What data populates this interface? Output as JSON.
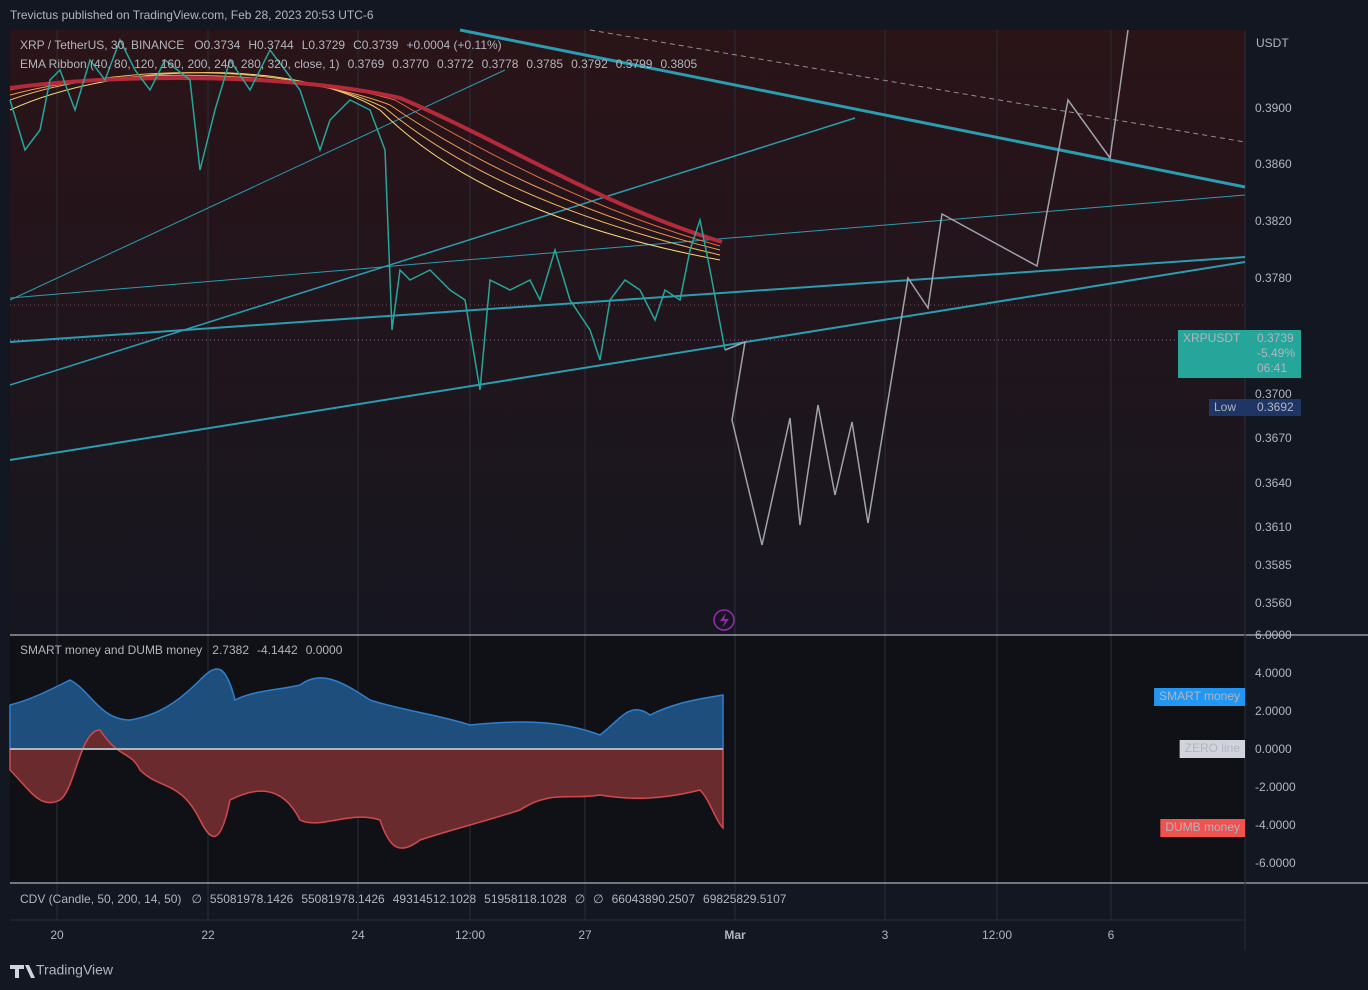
{
  "header": {
    "published": "Trevictus published on TradingView.com, Feb 28, 2023 20:53 UTC-6"
  },
  "legend": {
    "symbol": "XRP / TetherUS, 30, BINANCE",
    "ohlc": [
      "O0.3734",
      "H0.3744",
      "L0.3729",
      "C0.3739",
      "+0.0004 (+0.11%)"
    ],
    "ema_title": "EMA Ribbon (40, 80, 120, 160, 200, 240, 280, 320, close, 1)",
    "ema_values": [
      {
        "text": "0.3769",
        "color": "#f5d97a"
      },
      {
        "text": "0.3770",
        "color": "#f3c86a"
      },
      {
        "text": "0.3772",
        "color": "#f0b35c"
      },
      {
        "text": "0.3778",
        "color": "#ec9b52"
      },
      {
        "text": "0.3785",
        "color": "#e88049"
      },
      {
        "text": "0.3792",
        "color": "#e26841"
      },
      {
        "text": "0.3799",
        "color": "#dc503c"
      },
      {
        "text": "0.3805",
        "color": "#d23a3a"
      }
    ]
  },
  "price_axis": {
    "unit": "USDT",
    "ticks": [
      "0.3900",
      "0.3860",
      "0.3820",
      "0.3780",
      "0.3700",
      "0.3670",
      "0.3640",
      "0.3610",
      "0.3585",
      "0.3560"
    ],
    "badge": {
      "symbol": "XRPUSDT",
      "price": "0.3739",
      "change": "-5.49%",
      "countdown": "06:41"
    },
    "low": {
      "label": "Low",
      "price": "0.3692"
    }
  },
  "indicator": {
    "title": "SMART money and DUMB money",
    "values": [
      {
        "text": "2.7382",
        "color": "#5b9cf6"
      },
      {
        "text": "-4.1442",
        "color": "#f77c80"
      },
      {
        "text": "0.0000",
        "color": "#b2b5be"
      }
    ],
    "ticks": [
      "6.0000",
      "4.0000",
      "2.0000",
      "0.0000",
      "-2.0000",
      "-4.0000",
      "-6.0000"
    ],
    "badges": [
      {
        "text": "SMART money",
        "color": "#2196f3"
      },
      {
        "text": "ZERO line",
        "color": "#d1d4dc"
      },
      {
        "text": "DUMB money",
        "color": "#ef5350"
      }
    ]
  },
  "cdv": {
    "title": "CDV (Candle, 50, 200, 14, 50)",
    "items": [
      {
        "text": "∅",
        "color": "#b2b5be"
      },
      {
        "text": "55081978.1426",
        "color": "#f7525f"
      },
      {
        "text": "55081978.1426",
        "color": "#f7525f"
      },
      {
        "text": "49314512.1028",
        "color": "#f7525f"
      },
      {
        "text": "51958118.1028",
        "color": "#f7525f"
      },
      {
        "text": "∅",
        "color": "#b2b5be"
      },
      {
        "text": "∅",
        "color": "#b2b5be"
      },
      {
        "text": "66043890.2507",
        "color": "#22ab94"
      },
      {
        "text": "69825829.5107",
        "color": "#f7525f"
      }
    ]
  },
  "time_axis": {
    "ticks": [
      "20",
      "22",
      "24",
      "12:00",
      "27",
      "Mar",
      "3",
      "12:00",
      "6"
    ]
  },
  "footer": {
    "brand": "TradingView"
  }
}
